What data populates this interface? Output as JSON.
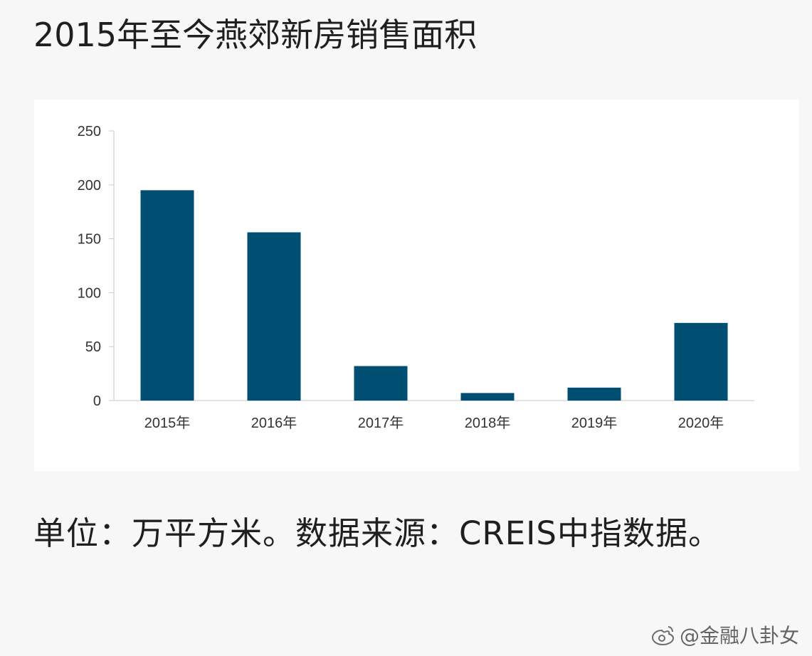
{
  "page": {
    "title": "2015年至今燕郊新房销售面积",
    "note": "单位：万平方米。数据来源：CREIS中指数据。",
    "watermark": "@金融八卦女"
  },
  "chart_data": {
    "type": "bar",
    "title": "",
    "categories": [
      "2015年",
      "2016年",
      "2017年",
      "2018年",
      "2019年",
      "2020年"
    ],
    "series": [
      {
        "values": [
          195,
          156,
          32,
          7,
          12,
          72
        ]
      }
    ],
    "xlabel": "",
    "ylabel": "",
    "ylim": [
      0,
      250
    ],
    "yticks": [
      0,
      50,
      100,
      150,
      200,
      250
    ],
    "grid": false,
    "legend": "none",
    "colors": {
      "bar": "#004f72",
      "axis": "#c9c9c9",
      "text": "#333333"
    }
  }
}
